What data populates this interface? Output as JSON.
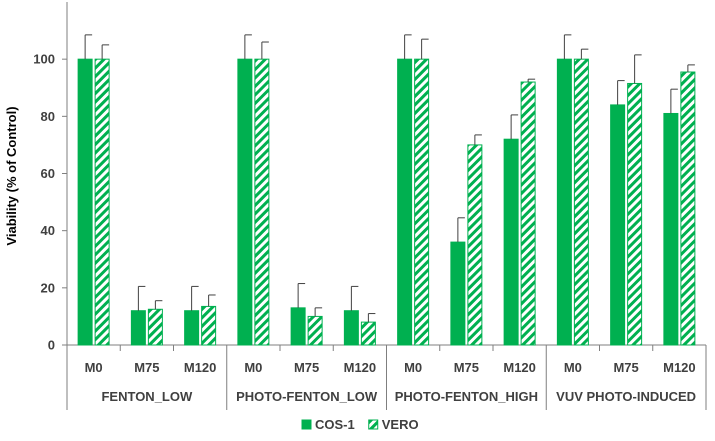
{
  "chart_data": {
    "type": "bar",
    "ylabel": "Viability (% of Control)",
    "ylim": [
      0,
      120
    ],
    "yticks": [
      0,
      20,
      40,
      60,
      80,
      100
    ],
    "grid": false,
    "legend_position": "bottom-center",
    "groups": [
      {
        "label": "FENTON_LOW",
        "categories": [
          "M0",
          "M75",
          "M120"
        ],
        "series": [
          {
            "name": "COS-1",
            "values": [
              100,
              12,
              12
            ],
            "errors": [
              8.5,
              8.5,
              8.5
            ]
          },
          {
            "name": "VERO",
            "values": [
              100,
              12.5,
              13.5
            ],
            "errors": [
              5,
              3,
              4
            ]
          }
        ]
      },
      {
        "label": "PHOTO-FENTON_LOW",
        "categories": [
          "M0",
          "M75",
          "M120"
        ],
        "series": [
          {
            "name": "COS-1",
            "values": [
              100,
              13,
              12
            ],
            "errors": [
              8.5,
              8.5,
              8.5
            ]
          },
          {
            "name": "VERO",
            "values": [
              100,
              10,
              8
            ],
            "errors": [
              6,
              3,
              3
            ]
          }
        ]
      },
      {
        "label": "PHOTO-FENTON_HIGH",
        "categories": [
          "M0",
          "M75",
          "M120"
        ],
        "series": [
          {
            "name": "COS-1",
            "values": [
              100,
              36,
              72
            ],
            "errors": [
              8.5,
              8.5,
              8.5
            ]
          },
          {
            "name": "VERO",
            "values": [
              100,
              70,
              92
            ],
            "errors": [
              7,
              3.5,
              1
            ]
          }
        ]
      },
      {
        "label": "VUV PHOTO-INDUCED",
        "categories": [
          "M0",
          "M75",
          "M120"
        ],
        "series": [
          {
            "name": "COS-1",
            "values": [
              100,
              84,
              81
            ],
            "errors": [
              8.5,
              8.5,
              8.5
            ]
          },
          {
            "name": "VERO",
            "values": [
              100,
              91.5,
              95.5
            ],
            "errors": [
              3.5,
              10,
              2.5
            ]
          }
        ]
      }
    ],
    "legend": [
      {
        "name": "COS-1",
        "style": "solid"
      },
      {
        "name": "VERO",
        "style": "hatched"
      }
    ],
    "colors": {
      "bar": "#00B050",
      "axis": "#7f7f7f",
      "text": "#404040",
      "error_bar": "#404040"
    }
  }
}
